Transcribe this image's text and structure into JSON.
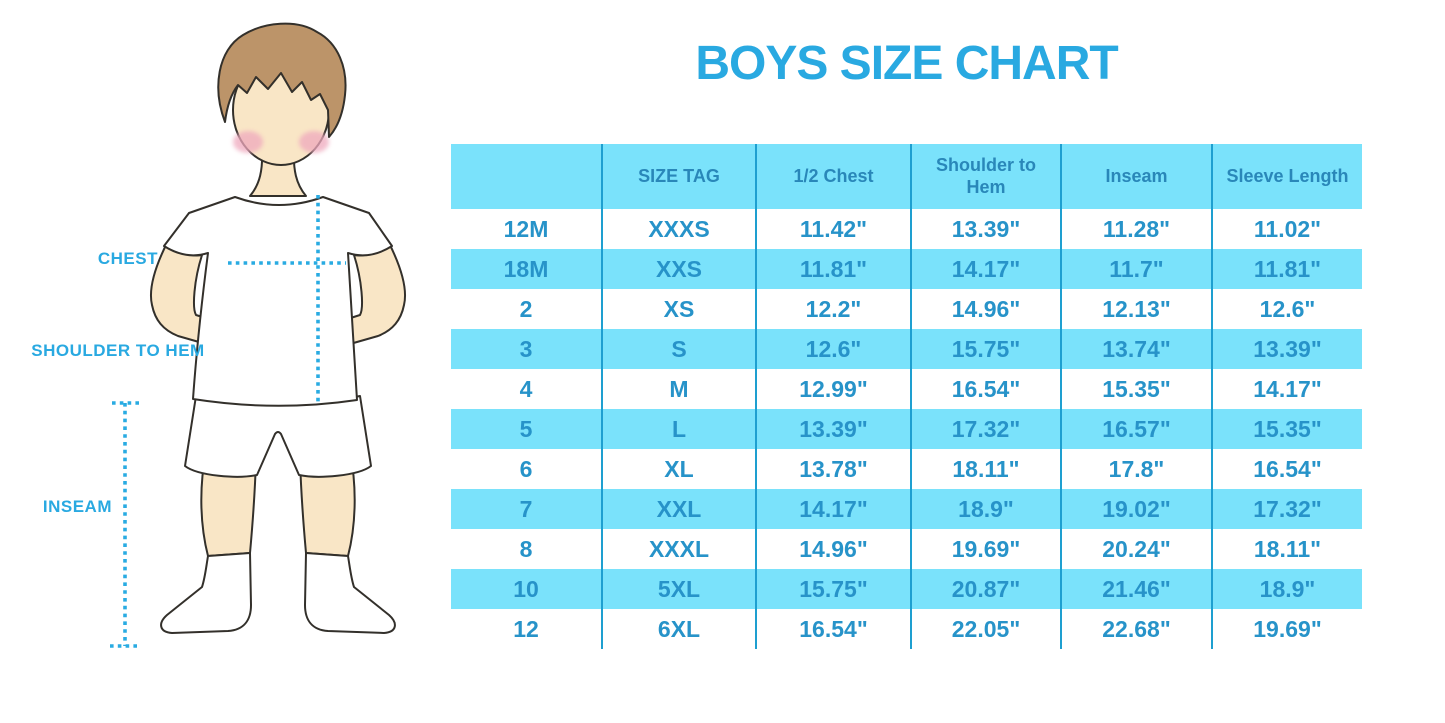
{
  "title": "BOYS SIZE CHART",
  "figure": {
    "description": "outline illustration of a boy wearing a white t-shirt, white shorts and white knee socks, hands on hips",
    "labels": {
      "chest": "CHEST",
      "shoulder_to_hem": "SHOULDER TO HEM",
      "inseam": "INSEAM"
    },
    "measure_lines": [
      "chest-dotted-line",
      "shoulder-to-hem-dotted-line",
      "inseam-dotted-line"
    ]
  },
  "colors": {
    "title": "#29A9E1",
    "label_text": "#29A9E1",
    "header_bg": "#7AE2FB",
    "row_alt_bg": "#7AE2FB",
    "header_text": "#2987B9",
    "table_text": "#2793C9",
    "grid_line": "#1E9FD0",
    "dotted_line": "#29ABE2",
    "skin": "#F9E6C6",
    "hair": "#BC9469",
    "cheek": "#EFA9BD",
    "outline": "#33302B"
  },
  "chart_data": {
    "type": "table",
    "title": "BOYS SIZE CHART",
    "columns": [
      "",
      "SIZE TAG",
      "1/2 Chest",
      "Shoulder to Hem",
      "Inseam",
      "Sleeve Length"
    ],
    "rows": [
      [
        "12M",
        "XXXS",
        "11.42\"",
        "13.39\"",
        "11.28\"",
        "11.02\""
      ],
      [
        "18M",
        "XXS",
        "11.81\"",
        "14.17\"",
        "11.7\"",
        "11.81\""
      ],
      [
        "2",
        "XS",
        "12.2\"",
        "14.96\"",
        "12.13\"",
        "12.6\""
      ],
      [
        "3",
        "S",
        "12.6\"",
        "15.75\"",
        "13.74\"",
        "13.39\""
      ],
      [
        "4",
        "M",
        "12.99\"",
        "16.54\"",
        "15.35\"",
        "14.17\""
      ],
      [
        "5",
        "L",
        "13.39\"",
        "17.32\"",
        "16.57\"",
        "15.35\""
      ],
      [
        "6",
        "XL",
        "13.78\"",
        "18.11\"",
        "17.8\"",
        "16.54\""
      ],
      [
        "7",
        "XXL",
        "14.17\"",
        "18.9\"",
        "19.02\"",
        "17.32\""
      ],
      [
        "8",
        "XXXL",
        "14.96\"",
        "19.69\"",
        "20.24\"",
        "18.11\""
      ],
      [
        "10",
        "5XL",
        "15.75\"",
        "20.87\"",
        "21.46\"",
        "18.9\""
      ],
      [
        "12",
        "6XL",
        "16.54\"",
        "22.05\"",
        "22.68\"",
        "19.69\""
      ]
    ],
    "layout_hints": {
      "row_striping": "header and every second data row light cyan, others white",
      "grid": "vertical column separators only, no horizontal lines"
    }
  }
}
